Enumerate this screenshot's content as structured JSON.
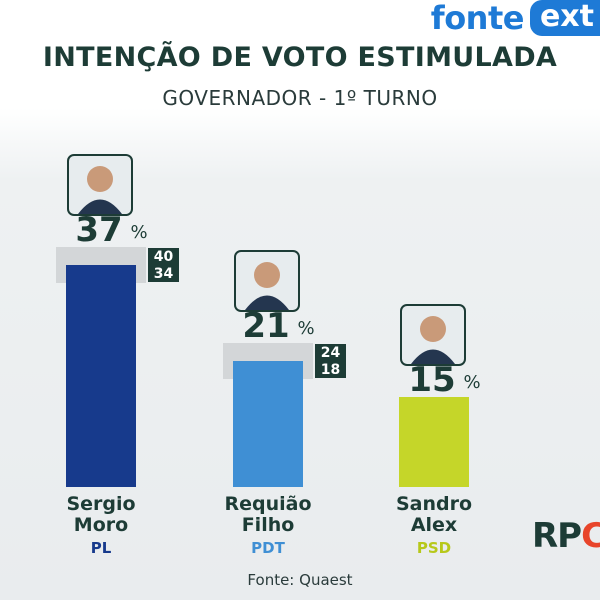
{
  "brand": {
    "name": "fonte",
    "badge": "ext"
  },
  "header": {
    "title": "INTENÇÃO DE VOTO ESTIMULADA",
    "subtitle": "GOVERNADOR - 1º TURNO"
  },
  "footer": {
    "source": "Fonte: Quaest",
    "broadcaster_logo": "RPC"
  },
  "chart_data": {
    "type": "bar",
    "unit": "%",
    "categories": [
      "Sergio Moro",
      "Requião Filho",
      "Sandro Alex"
    ],
    "candidates": [
      {
        "first_name": "Sergio",
        "last_name": "Moro",
        "party": "PL",
        "value": 37,
        "range_high": 40,
        "range_low": 34,
        "bar_color": "#173a8c",
        "party_color": "#173a8c",
        "photo_icon": "candidate-photo"
      },
      {
        "first_name": "Requião",
        "last_name": "Filho",
        "party": "PDT",
        "value": 21,
        "range_high": 24,
        "range_low": 18,
        "bar_color": "#3f8fd4",
        "party_color": "#3f8fd4",
        "photo_icon": "candidate-photo"
      },
      {
        "first_name": "Sandro",
        "last_name": "Alex",
        "party": "PSD",
        "value": 15,
        "range_high": null,
        "range_low": null,
        "bar_color": "#c5d629",
        "party_color": "#b7c81a",
        "photo_icon": "candidate-photo"
      }
    ]
  }
}
